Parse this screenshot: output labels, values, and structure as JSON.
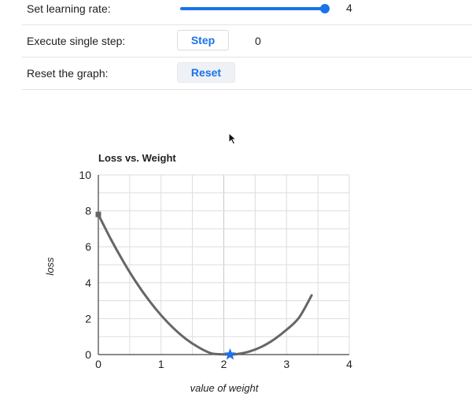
{
  "controls": {
    "learning_rate": {
      "label": "Set learning rate:",
      "value": "4",
      "fraction": 1.0
    },
    "step": {
      "label": "Execute single step:",
      "button": "Step",
      "count": "0"
    },
    "reset": {
      "label": "Reset the graph:",
      "button": "Reset"
    }
  },
  "colors": {
    "accent": "#1a73e8",
    "curve": "#666666",
    "grid": "#dddddd"
  },
  "chart_data": {
    "type": "line",
    "title": "Loss vs. Weight",
    "xlabel": "value of weight",
    "ylabel": "loss",
    "xlim": [
      0,
      4
    ],
    "ylim": [
      0,
      10
    ],
    "xticks": [
      "0",
      "1",
      "2",
      "3",
      "4"
    ],
    "yticks": [
      "0",
      "2",
      "4",
      "6",
      "8",
      "10"
    ],
    "grid": true,
    "curve": {
      "x": [
        0,
        0.2,
        0.4,
        0.6,
        0.8,
        1.0,
        1.2,
        1.4,
        1.6,
        1.8,
        2.0,
        2.1,
        2.2,
        2.4,
        2.6,
        2.8,
        3.0,
        3.2,
        3.4
      ],
      "y": [
        7.8,
        6.42,
        5.17,
        4.04,
        3.05,
        2.19,
        1.46,
        0.86,
        0.4,
        0.07,
        0.01,
        0.0,
        0.02,
        0.16,
        0.43,
        0.84,
        1.38,
        2.06,
        3.3
      ]
    },
    "start_point": {
      "x": 0,
      "y": 7.8
    },
    "minimum_point": {
      "x": 2.1,
      "y": 0
    }
  }
}
